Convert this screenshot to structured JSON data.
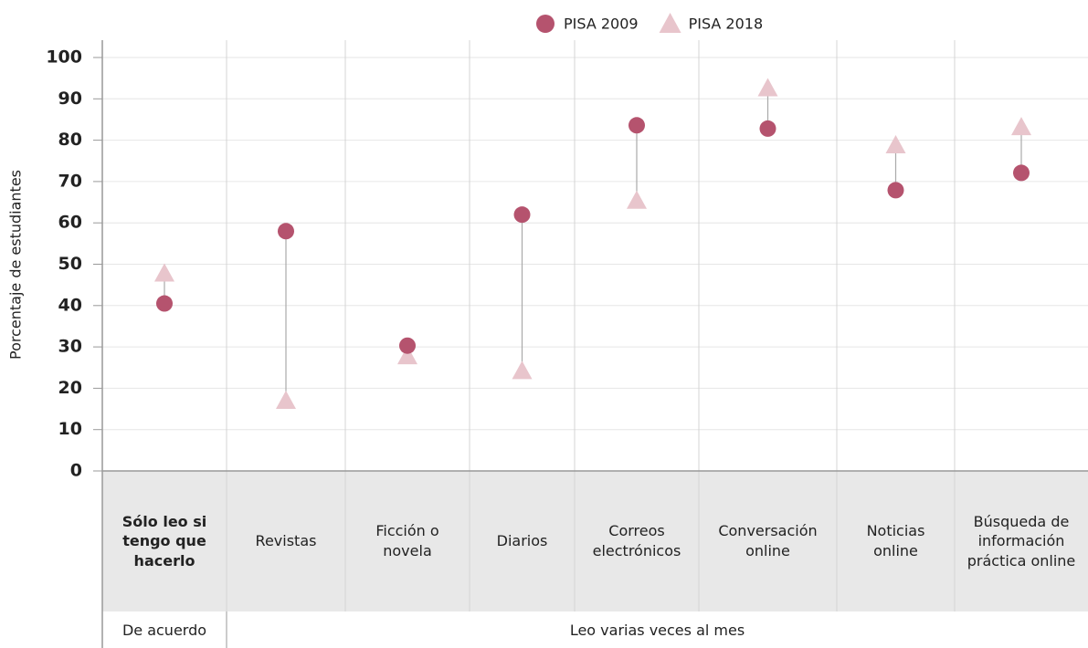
{
  "chart_data": {
    "type": "dot",
    "y_label": "Porcentaje de estudiantes",
    "categories": [
      "Sólo leo si tengo que hacerlo",
      "Revistas",
      "Ficción o novela",
      "Diarios",
      "Correos electrónicos",
      "Conversación online",
      "Noticias online",
      "Búsqueda de información práctica online"
    ],
    "series": [
      {
        "name": "PISA 2009",
        "color": "#b5536e",
        "marker": "circle",
        "values": [
          40.5,
          58,
          30.3,
          62,
          83.6,
          82.8,
          67.9,
          72.1
        ]
      },
      {
        "name": "PISA 2018",
        "color": "#e8c5cc",
        "marker": "triangle",
        "values": [
          47.8,
          17,
          27.8,
          24.2,
          65.4,
          92.6,
          78.8,
          83.2
        ]
      }
    ],
    "groups": [
      {
        "label": "De acuerdo",
        "start": 0,
        "end": 0
      },
      {
        "label": "Leo varias veces al mes",
        "start": 1,
        "end": 7
      }
    ],
    "ylim": [
      0,
      100
    ],
    "yticks": [
      0,
      10,
      20,
      30,
      40,
      50,
      60,
      70,
      80,
      90,
      100
    ],
    "grid": true
  }
}
